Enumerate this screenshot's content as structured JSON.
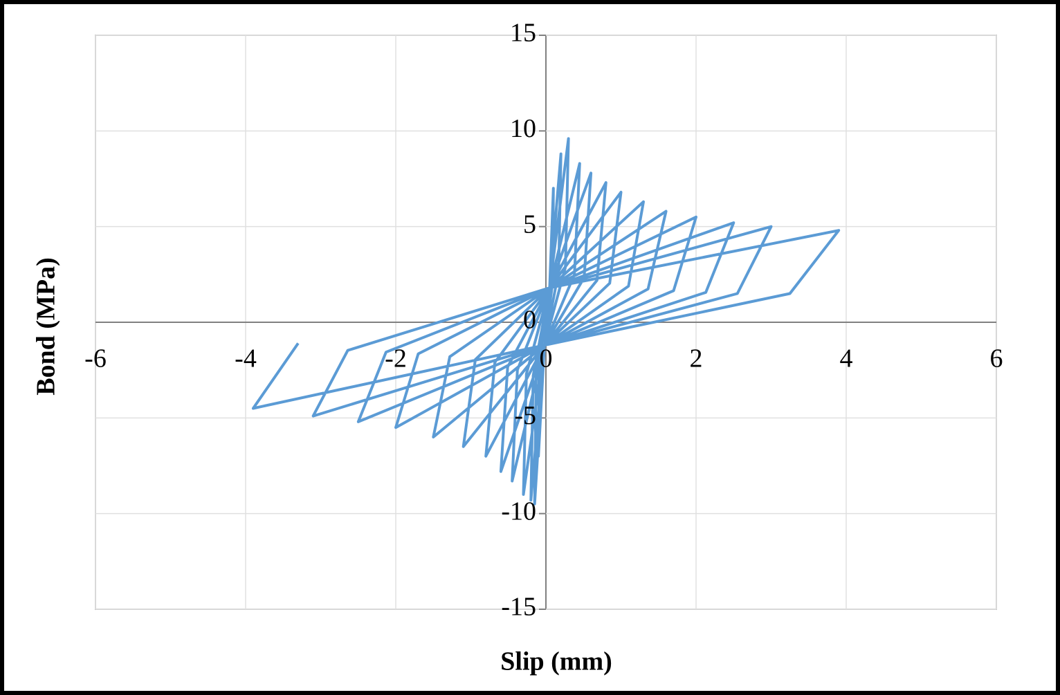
{
  "chart_data": {
    "type": "line",
    "x_label": "Slip (mm)",
    "y_label": "Bond (MPa)",
    "xlim": [
      -6,
      6
    ],
    "xticks": [
      -6,
      -4,
      -2,
      0,
      2,
      4,
      6
    ],
    "ylim": [
      -15,
      15
    ],
    "yticks": [
      -15,
      -10,
      -5,
      0,
      5,
      10,
      15
    ],
    "grid": true,
    "x": [
      0,
      0.05,
      0.1,
      0.09,
      -0.02,
      -0.1,
      -0.09,
      0.05,
      0.2,
      0.17,
      -0.02,
      -0.15,
      -0.13,
      0.05,
      0.3,
      0.26,
      -0.02,
      -0.2,
      -0.17,
      0.05,
      0.45,
      0.38,
      -0.02,
      -0.3,
      -0.26,
      0.05,
      0.6,
      0.51,
      -0.02,
      -0.45,
      -0.38,
      0.05,
      0.8,
      0.68,
      -0.02,
      -0.6,
      -0.51,
      0.05,
      1.0,
      0.85,
      -0.02,
      -0.8,
      -0.68,
      0.05,
      1.3,
      1.1,
      -0.02,
      -1.1,
      -0.94,
      0.05,
      1.6,
      1.36,
      -0.02,
      -1.5,
      -1.28,
      0.05,
      2.0,
      1.7,
      -0.02,
      -2.0,
      -1.7,
      0.05,
      2.5,
      2.13,
      -0.02,
      -2.5,
      -2.13,
      0.05,
      3.0,
      2.55,
      -0.02,
      -3.1,
      -2.64,
      0.05,
      3.9,
      3.25,
      -0.02,
      -3.9,
      -3.3
    ],
    "series": [
      {
        "name": "Bond",
        "color": "#5b9bd5",
        "values": [
          0,
          1.8,
          7,
          2.1,
          -1.2,
          -7,
          -2.1,
          1.8,
          8.8,
          2.64,
          -1.2,
          -9.5,
          -2.85,
          1.8,
          9.6,
          2.88,
          -1.2,
          -9.3,
          -2.79,
          1.8,
          8.3,
          2.49,
          -1.2,
          -9,
          -2.7,
          1.8,
          7.8,
          2.34,
          -1.2,
          -8.3,
          -2.49,
          1.8,
          7.3,
          2.19,
          -1.2,
          -7.8,
          -2.34,
          1.8,
          6.8,
          2.04,
          -1.2,
          -7,
          -2.1,
          1.8,
          6.3,
          1.89,
          -1.2,
          -6.5,
          -1.95,
          1.8,
          5.8,
          1.74,
          -1.2,
          -6,
          -1.8,
          1.8,
          5.5,
          1.65,
          -1.2,
          -5.5,
          -1.65,
          1.8,
          5.2,
          1.56,
          -1.2,
          -5.2,
          -1.56,
          1.8,
          5.0,
          1.5,
          -1.2,
          -4.9,
          -1.47,
          1.8,
          4.8,
          1.5,
          -1.2,
          -4.5,
          -1.1
        ]
      }
    ]
  }
}
